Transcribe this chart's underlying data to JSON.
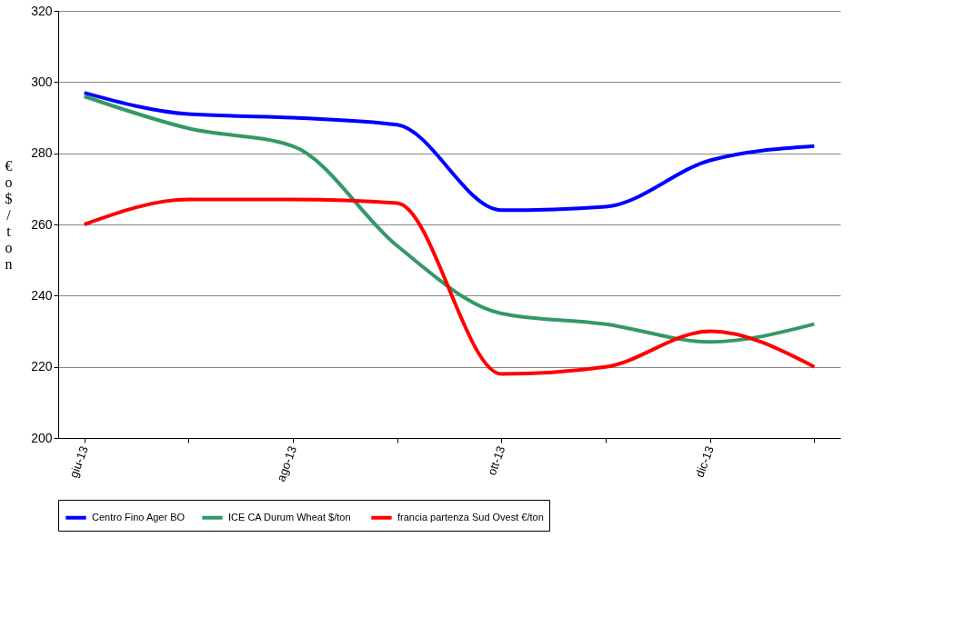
{
  "chart_data": {
    "type": "line",
    "ylabel": "€o$/ton",
    "categories": [
      "giu-13",
      null,
      "ago-13",
      null,
      "ott-13",
      null,
      "dic-13",
      null
    ],
    "series": [
      {
        "name": "Centro Fino Ager BO",
        "color": "#0000ff",
        "values": [
          297,
          291,
          290,
          288,
          264,
          265,
          278,
          282
        ]
      },
      {
        "name": "ICE CA Durum Wheat  $/ton",
        "color": "#339966",
        "values": [
          296,
          287,
          282,
          254,
          235,
          232,
          227,
          232
        ]
      },
      {
        "name": "francia partenza Sud Ovest €/ton",
        "color": "#ff0000",
        "values": [
          260,
          267,
          267,
          266,
          218,
          220,
          230,
          220
        ]
      }
    ],
    "ylim": [
      200,
      320
    ],
    "yticks": [
      200,
      220,
      240,
      260,
      280,
      300,
      320
    ],
    "grid": "y",
    "legend": "bottom",
    "marker": "none",
    "line_style": "solid"
  }
}
